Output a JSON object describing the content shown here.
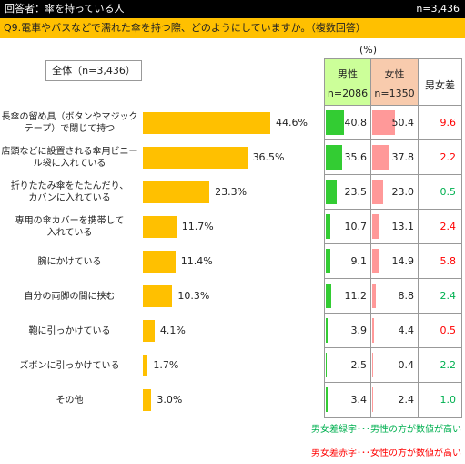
{
  "header": {
    "respondent": "回答者：傘を持っている人",
    "total_n": "n=3,436"
  },
  "question": "Q9.電車やバスなどで濡れた傘を持つ際、どのようにしていますか。（複数回答）",
  "legend_box": "全体（n=3,436）",
  "unit": "(%)",
  "table_headers": {
    "male": "男性",
    "male_n": "n=2086",
    "female": "女性",
    "female_n": "n=1350",
    "diff": "男女差"
  },
  "colors": {
    "bar": "#ffc000",
    "male_bar": "#33cc33",
    "female_bar": "#ff9999",
    "diff_green": "#00b050",
    "diff_red": "#ff0000",
    "male_header": "#ccff99",
    "female_header": "#f8cbad"
  },
  "chart_data": {
    "type": "bar",
    "orientation": "horizontal",
    "categories": [
      [
        "長傘の留め具（ボタンやマジック",
        "テープ）で閉じて持つ"
      ],
      [
        "店頭などに設置される傘用ビニー",
        "ル袋に入れている"
      ],
      [
        "折りたたみ傘をたたんだり、",
        "カバンに入れている"
      ],
      [
        "専用の傘カバーを携帯して",
        "入れている"
      ],
      [
        "腕にかけている"
      ],
      [
        "自分の両脚の間に挟む"
      ],
      [
        "鞄に引っかけている"
      ],
      [
        "ズボンに引っかけている"
      ],
      [
        "その他"
      ]
    ],
    "series": [
      {
        "name": "全体（n=3,436）",
        "values": [
          44.6,
          36.5,
          23.3,
          11.7,
          11.4,
          10.3,
          4.1,
          1.7,
          3.0
        ],
        "labels": [
          "44.6%",
          "36.5%",
          "23.3%",
          "11.7%",
          "11.4%",
          "10.3%",
          "4.1%",
          "1.7%",
          "3.0%"
        ]
      },
      {
        "name": "男性",
        "values": [
          40.8,
          35.6,
          23.5,
          10.7,
          9.1,
          11.2,
          3.9,
          2.5,
          3.4
        ],
        "labels": [
          "40.8",
          "35.6",
          "23.5",
          "10.7",
          "9.1",
          "11.2",
          "3.9",
          "2.5",
          "3.4"
        ]
      },
      {
        "name": "女性",
        "values": [
          50.4,
          37.8,
          23.0,
          13.1,
          14.9,
          8.8,
          4.4,
          0.4,
          2.4
        ],
        "labels": [
          "50.4",
          "37.8",
          "23.0",
          "13.1",
          "14.9",
          "8.8",
          "4.4",
          "0.4",
          "2.4"
        ]
      }
    ],
    "diff": [
      {
        "label": "9.6",
        "color": "red"
      },
      {
        "label": "2.2",
        "color": "red"
      },
      {
        "label": "0.5",
        "color": "green"
      },
      {
        "label": "2.4",
        "color": "red"
      },
      {
        "label": "5.8",
        "color": "red"
      },
      {
        "label": "2.4",
        "color": "green"
      },
      {
        "label": "0.5",
        "color": "red"
      },
      {
        "label": "2.2",
        "color": "green"
      },
      {
        "label": "1.0",
        "color": "green"
      }
    ],
    "xlim": [
      0,
      100
    ],
    "legend": "top-left"
  },
  "notes": {
    "green": "男女差緑字･･･男性の方が数値が高い",
    "red": "男女差赤字･･･女性の方が数値が高い"
  }
}
